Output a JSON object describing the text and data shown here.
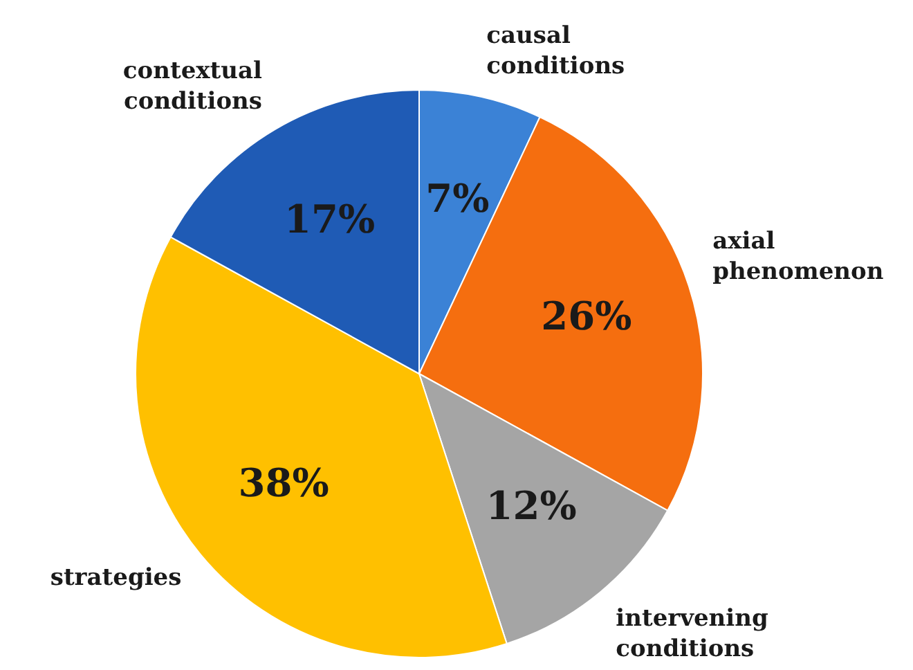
{
  "chart_data": {
    "type": "pie",
    "categories": [
      "causal conditions",
      "axial phenomenon",
      "intervening conditions",
      "strategies",
      "contextual conditions"
    ],
    "values": [
      7,
      26,
      12,
      38,
      17
    ],
    "colors": [
      "#3b82d6",
      "#f56e0f",
      "#a5a5a5",
      "#ffc000",
      "#1f5bb5"
    ],
    "value_labels": [
      "7%",
      "26%",
      "12%",
      "38%",
      "17%"
    ],
    "legend": false
  }
}
